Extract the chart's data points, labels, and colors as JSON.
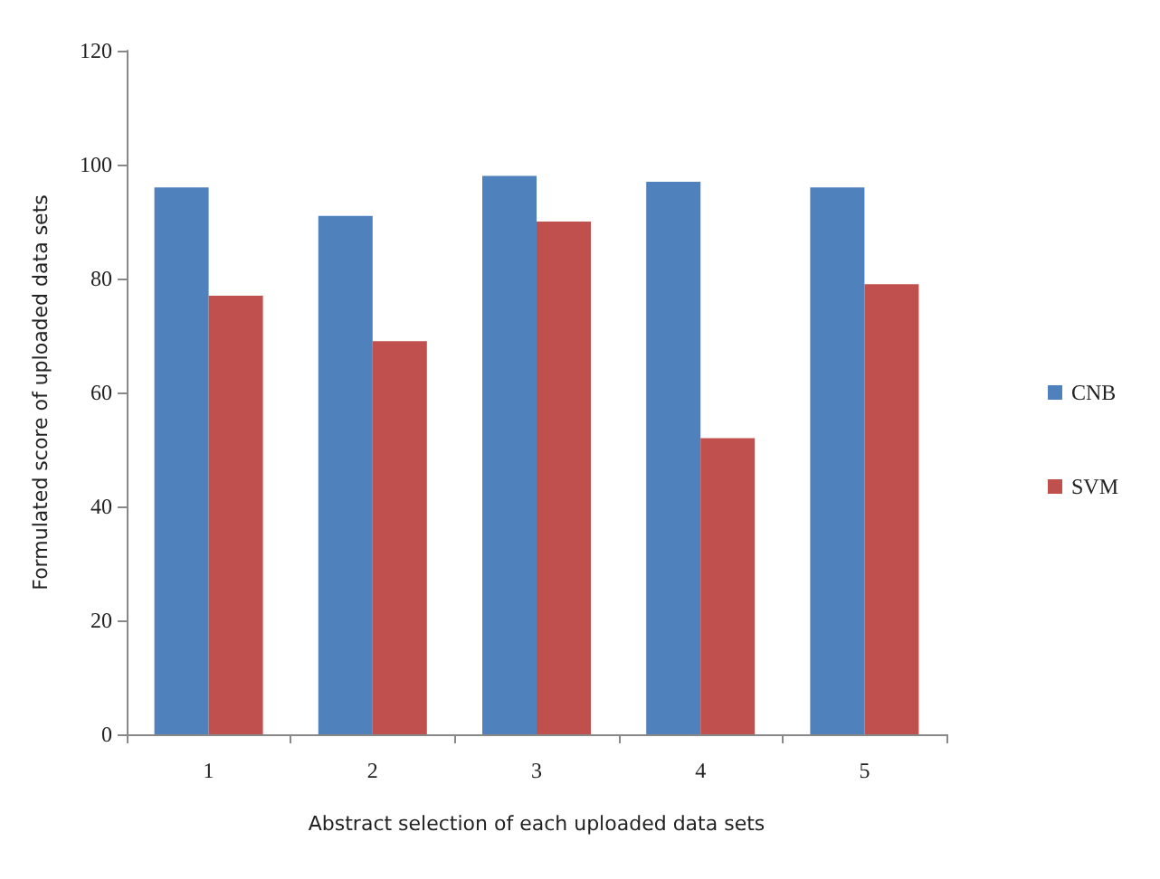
{
  "chart_data": {
    "type": "bar",
    "xlabel": "Abstract selection of each uploaded data sets",
    "ylabel": "Formulated score of uploaded data sets",
    "categories": [
      "1",
      "2",
      "3",
      "4",
      "5"
    ],
    "series": [
      {
        "name": "CNB",
        "color": "#4f81bd",
        "values": [
          96,
          91,
          98,
          97,
          96
        ]
      },
      {
        "name": "SVM",
        "color": "#c0504d",
        "values": [
          77,
          69,
          90,
          52,
          79
        ]
      }
    ],
    "ylim": [
      0,
      120
    ],
    "yticks": [
      0,
      20,
      40,
      60,
      80,
      100,
      120
    ],
    "grid": false,
    "legend": "right"
  }
}
